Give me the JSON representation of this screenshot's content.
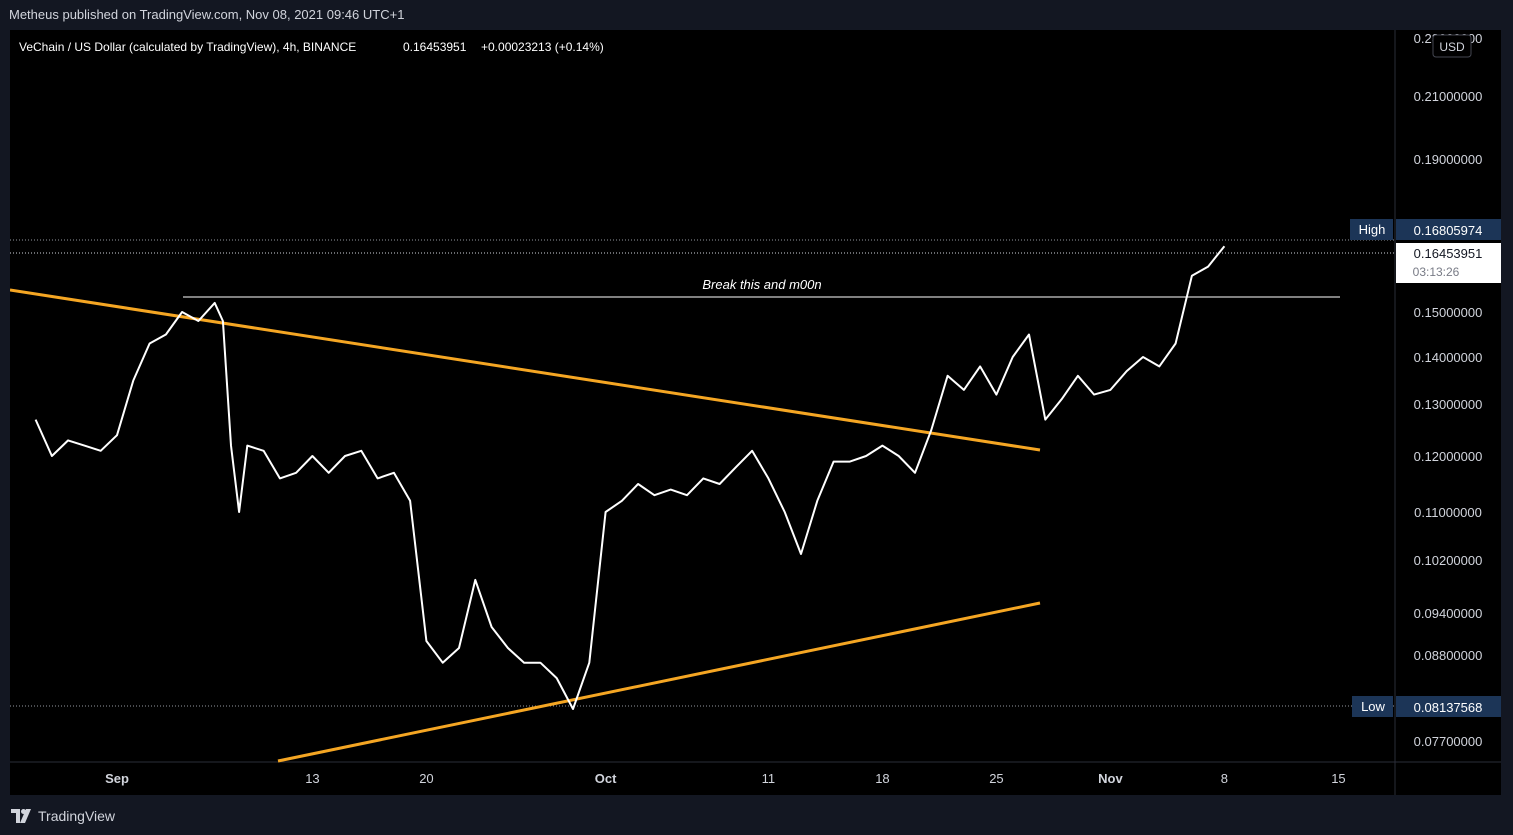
{
  "header": {
    "published_text": "Metheus published on TradingView.com, Nov 08, 2021 09:46 UTC+1"
  },
  "footer": {
    "brand": "TradingView",
    "logo_icon": "tradingview-logo-icon"
  },
  "chart_data": {
    "type": "line",
    "title": "VeChain / US Dollar (calculated by TradingView), 4h, BINANCE",
    "last_price_text": "0.16453951",
    "change_text": "+0.00023213 (+0.14%)",
    "currency": "USD",
    "countdown": "03:13:26",
    "series_color": "#ffffff",
    "background": "#000000",
    "axis": {
      "y_ticks": [
        "0.23000000",
        "0.21000000",
        "0.19000000",
        "0.15000000",
        "0.14000000",
        "0.13000000",
        "0.12000000",
        "0.11000000",
        "0.10200000",
        "0.09400000",
        "0.08800000",
        "0.07700000"
      ],
      "x_ticks": [
        "Sep",
        "13",
        "20",
        "Oct",
        "11",
        "18",
        "25",
        "Nov",
        "8",
        "15"
      ]
    },
    "high_label": "High",
    "high_value": "0.16805974",
    "low_label": "Low",
    "low_value": "0.08137568",
    "annotation": "Break this and m00n",
    "trendline_color": "#f5a623",
    "series": [
      {
        "x": [
          "2021-08-27",
          "2021-08-28",
          "2021-08-29",
          "2021-08-30",
          "2021-08-31",
          "2021-09-01",
          "2021-09-02",
          "2021-09-03",
          "2021-09-04",
          "2021-09-05",
          "2021-09-06",
          "2021-09-07",
          "2021-09-07T12",
          "2021-09-08",
          "2021-09-08T12",
          "2021-09-09",
          "2021-09-10",
          "2021-09-11",
          "2021-09-12",
          "2021-09-13",
          "2021-09-14",
          "2021-09-15",
          "2021-09-16",
          "2021-09-17",
          "2021-09-18",
          "2021-09-19",
          "2021-09-20",
          "2021-09-21",
          "2021-09-22",
          "2021-09-23",
          "2021-09-24",
          "2021-09-25",
          "2021-09-26",
          "2021-09-27",
          "2021-09-28",
          "2021-09-29",
          "2021-09-30",
          "2021-10-01",
          "2021-10-02",
          "2021-10-03",
          "2021-10-04",
          "2021-10-05",
          "2021-10-06",
          "2021-10-07",
          "2021-10-08",
          "2021-10-09",
          "2021-10-10",
          "2021-10-11",
          "2021-10-12",
          "2021-10-13",
          "2021-10-14",
          "2021-10-15",
          "2021-10-16",
          "2021-10-17",
          "2021-10-18",
          "2021-10-19",
          "2021-10-20",
          "2021-10-21",
          "2021-10-22",
          "2021-10-23",
          "2021-10-24",
          "2021-10-25",
          "2021-10-26",
          "2021-10-27",
          "2021-10-28",
          "2021-10-29",
          "2021-10-30",
          "2021-10-31",
          "2021-11-01",
          "2021-11-02",
          "2021-11-03",
          "2021-11-04",
          "2021-11-05",
          "2021-11-06",
          "2021-11-07",
          "2021-11-08"
        ],
        "values": [
          0.127,
          0.12,
          0.123,
          0.122,
          0.121,
          0.124,
          0.135,
          0.143,
          0.145,
          0.15,
          0.148,
          0.152,
          0.148,
          0.122,
          0.11,
          0.122,
          0.121,
          0.116,
          0.117,
          0.12,
          0.117,
          0.12,
          0.121,
          0.116,
          0.117,
          0.112,
          0.09,
          0.087,
          0.089,
          0.099,
          0.092,
          0.089,
          0.087,
          0.087,
          0.085,
          0.081,
          0.087,
          0.11,
          0.112,
          0.115,
          0.113,
          0.114,
          0.113,
          0.116,
          0.115,
          0.118,
          0.121,
          0.116,
          0.11,
          0.103,
          0.112,
          0.119,
          0.119,
          0.12,
          0.122,
          0.12,
          0.117,
          0.125,
          0.136,
          0.133,
          0.138,
          0.132,
          0.14,
          0.145,
          0.127,
          0.131,
          0.136,
          0.132,
          0.133,
          0.137,
          0.14,
          0.138,
          0.143,
          0.158,
          0.16,
          0.1645
        ]
      }
    ]
  }
}
